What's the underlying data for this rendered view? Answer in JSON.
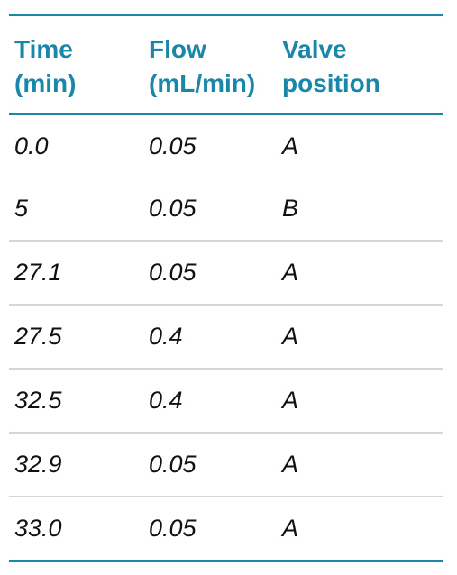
{
  "table": {
    "header": [
      "Time (min)",
      "Flow (mL/min)",
      "Valve position"
    ],
    "rows": [
      [
        "0.0",
        "0.05",
        "A"
      ],
      [
        "5",
        "0.05",
        "B"
      ],
      [
        "27.1",
        "0.05",
        "A"
      ],
      [
        "27.5",
        "0.4",
        "A"
      ],
      [
        "32.5",
        "0.4",
        "A"
      ],
      [
        "32.9",
        "0.05",
        "A"
      ],
      [
        "33.0",
        "0.05",
        "A"
      ]
    ]
  }
}
